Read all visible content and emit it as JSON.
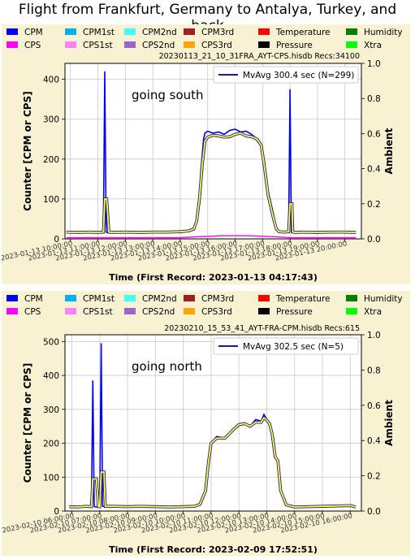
{
  "page": {
    "title": "Flight from Frankfurt, Germany to Antalya, Turkey, and back"
  },
  "legend_entries": [
    {
      "label": "CPM",
      "color": "#0000ff"
    },
    {
      "label": "CPM1st",
      "color": "#00b0f0"
    },
    {
      "label": "CPM2nd",
      "color": "#40ffff"
    },
    {
      "label": "CPM3rd",
      "color": "#a02020"
    },
    {
      "label": "Temperature",
      "color": "#ff0000"
    },
    {
      "label": "Humidity",
      "color": "#008000"
    },
    {
      "label": "CPS",
      "color": "#ff00ff"
    },
    {
      "label": "CPS1st",
      "color": "#ff80ff"
    },
    {
      "label": "CPS2nd",
      "color": "#9966cc"
    },
    {
      "label": "CPS3rd",
      "color": "#ffa500"
    },
    {
      "label": "Pressure",
      "color": "#000000"
    },
    {
      "label": "Xtra",
      "color": "#00ff00"
    }
  ],
  "chart_data": [
    {
      "type": "line",
      "file_info": "20230113_21_10_31FRA_AYT-CPS.hisdb   Recs:34100",
      "annotation": "going south",
      "moving_average_label": "MvAvg 300.4 sec (N=299)",
      "xlabel": "Time (First Record: 2023-01-13 04:17:43)",
      "ylabel": "Counter  [CPM or CPS]",
      "y2label": "Ambient",
      "x_ticks": [
        "2023-01-13 10:00:00",
        "2023-01-13 11:00:00",
        "2023-01-13 12:00:00",
        "2023-01-13 13:00:00",
        "2023-01-13 14:00:00",
        "2023-01-13 15:00:00",
        "2023-01-13 16:00:00",
        "2023-01-13 17:00:00",
        "2023-01-13 18:00:00",
        "2023-01-13 19:00:00",
        "2023-01-13 20:00:00"
      ],
      "xlim_hours": [
        9.8,
        20.6
      ],
      "ylim": [
        0,
        440
      ],
      "y_ticks": [
        0,
        100,
        200,
        300,
        400
      ],
      "y2lim": [
        0,
        1.0
      ],
      "y2_ticks": [
        0.0,
        0.2,
        0.4,
        0.6,
        0.8,
        1.0
      ],
      "grid": true,
      "legend_position": "top-right",
      "series": [
        {
          "name": "CPM",
          "color": "#0000ff",
          "x_hours": [
            9.85,
            10.3,
            10.7,
            11.0,
            11.2,
            11.25,
            11.3,
            11.35,
            11.5,
            12.0,
            12.5,
            13.0,
            13.5,
            14.0,
            14.3,
            14.5,
            14.6,
            14.7,
            14.75,
            14.85,
            14.9,
            15.0,
            15.2,
            15.4,
            15.6,
            15.8,
            16.0,
            16.2,
            16.4,
            16.6,
            16.8,
            16.95,
            17.05,
            17.2,
            17.4,
            17.5,
            17.6,
            17.8,
            17.95,
            18.0,
            18.05,
            18.2,
            18.5,
            19.0,
            19.5,
            20.0,
            20.4
          ],
          "y": [
            17,
            16,
            17,
            16,
            18,
            420,
            17,
            16,
            16,
            17,
            16,
            17,
            17,
            18,
            20,
            25,
            45,
            90,
            170,
            250,
            265,
            270,
            265,
            268,
            262,
            272,
            275,
            268,
            270,
            262,
            250,
            235,
            200,
            120,
            60,
            25,
            18,
            17,
            18,
            375,
            17,
            16,
            17,
            16,
            17,
            17,
            16
          ]
        },
        {
          "name": "CPS",
          "color": "#ff00ff",
          "x_hours": [
            9.85,
            12.0,
            14.0,
            14.9,
            15.5,
            16.5,
            17.2,
            18.0,
            20.4
          ],
          "y": [
            3,
            3,
            3,
            6,
            8,
            8,
            6,
            3,
            3
          ]
        }
      ],
      "moving_average": {
        "name": "MvAvg",
        "color": "#ffff40",
        "x_hours": [
          9.85,
          10.3,
          10.7,
          11.0,
          11.2,
          11.25,
          11.32,
          11.4,
          11.5,
          12.0,
          12.5,
          13.0,
          13.5,
          14.0,
          14.3,
          14.5,
          14.6,
          14.7,
          14.8,
          14.9,
          15.0,
          15.2,
          15.4,
          15.6,
          15.8,
          16.0,
          16.2,
          16.4,
          16.6,
          16.8,
          16.95,
          17.05,
          17.2,
          17.4,
          17.5,
          17.6,
          17.8,
          17.95,
          18.0,
          18.07,
          18.1,
          18.2,
          18.5,
          19.0,
          19.5,
          20.0,
          20.4
        ],
        "y": [
          17,
          16,
          17,
          16,
          17,
          100,
          100,
          17,
          16,
          17,
          16,
          17,
          17,
          18,
          20,
          25,
          45,
          100,
          185,
          245,
          255,
          260,
          258,
          255,
          256,
          262,
          265,
          258,
          256,
          250,
          235,
          190,
          110,
          50,
          25,
          18,
          17,
          18,
          88,
          88,
          17,
          16,
          17,
          16,
          17,
          17,
          16
        ]
      }
    },
    {
      "type": "line",
      "file_info": "20230210_15_53_41_AYT-FRA-CPM.hisdb   Recs:615",
      "annotation": "going north",
      "moving_average_label": "MvAvg 302.5 sec (N=5)",
      "xlabel": "Time (First Record: 2023-02-09 17:52:51)",
      "ylabel": "Counter  [CPM or CPS]",
      "y2label": "Ambient",
      "x_ticks": [
        "2023-02-10 06:00:00",
        "2023-02-10 07:00:00",
        "2023-02-10 08:00:00",
        "2023-02-10 09:00:00",
        "2023-02-10 10:00:00",
        "2023-02-10 11:00:00",
        "2023-02-10 12:00:00",
        "2023-02-10 13:00:00",
        "2023-02-10 14:00:00",
        "2023-02-10 15:00:00",
        "2023-02-10 16:00:00"
      ],
      "xlim_hours": [
        5.75,
        16.4
      ],
      "ylim": [
        0,
        520
      ],
      "y_ticks": [
        0,
        100,
        200,
        300,
        400,
        500
      ],
      "y2lim": [
        0,
        1.0
      ],
      "y2_ticks": [
        0.0,
        0.2,
        0.4,
        0.6,
        0.8,
        1.0
      ],
      "grid": true,
      "legend_position": "top-right",
      "series": [
        {
          "name": "CPM",
          "color": "#0000ff",
          "x_hours": [
            5.9,
            6.2,
            6.5,
            6.7,
            6.75,
            6.8,
            6.9,
            7.0,
            7.05,
            7.1,
            7.2,
            7.5,
            8.0,
            8.5,
            9.0,
            9.5,
            10.0,
            10.4,
            10.6,
            10.8,
            10.9,
            11.0,
            11.2,
            11.5,
            11.8,
            12.0,
            12.2,
            12.4,
            12.6,
            12.8,
            12.9,
            13.0,
            13.1,
            13.2,
            13.3,
            13.4,
            13.5,
            13.7,
            14.0,
            14.5,
            15.0,
            15.5,
            16.0,
            16.2
          ],
          "y": [
            13,
            12,
            14,
            13,
            385,
            13,
            12,
            13,
            495,
            14,
            13,
            14,
            13,
            14,
            13,
            12,
            13,
            14,
            20,
            60,
            140,
            200,
            220,
            215,
            240,
            255,
            260,
            250,
            270,
            265,
            285,
            270,
            260,
            230,
            155,
            150,
            60,
            18,
            12,
            13,
            14,
            15,
            16,
            12
          ]
        }
      ],
      "moving_average": {
        "name": "MvAvg",
        "color": "#ffff40",
        "x_hours": [
          5.9,
          6.2,
          6.5,
          6.7,
          6.75,
          6.88,
          6.95,
          7.0,
          7.05,
          7.15,
          7.2,
          7.5,
          8.0,
          8.5,
          9.0,
          9.5,
          10.0,
          10.4,
          10.6,
          10.8,
          10.9,
          11.0,
          11.2,
          11.5,
          11.8,
          12.0,
          12.2,
          12.4,
          12.6,
          12.8,
          12.9,
          13.0,
          13.1,
          13.2,
          13.3,
          13.4,
          13.5,
          13.7,
          14.0,
          14.5,
          15.0,
          15.5,
          16.0,
          16.2
        ],
        "y": [
          13,
          12,
          14,
          13,
          95,
          95,
          13,
          13,
          115,
          115,
          14,
          14,
          13,
          14,
          13,
          12,
          13,
          14,
          20,
          60,
          140,
          200,
          215,
          215,
          240,
          255,
          258,
          250,
          262,
          262,
          275,
          268,
          258,
          225,
          160,
          148,
          60,
          18,
          12,
          13,
          14,
          15,
          16,
          12
        ]
      }
    }
  ]
}
